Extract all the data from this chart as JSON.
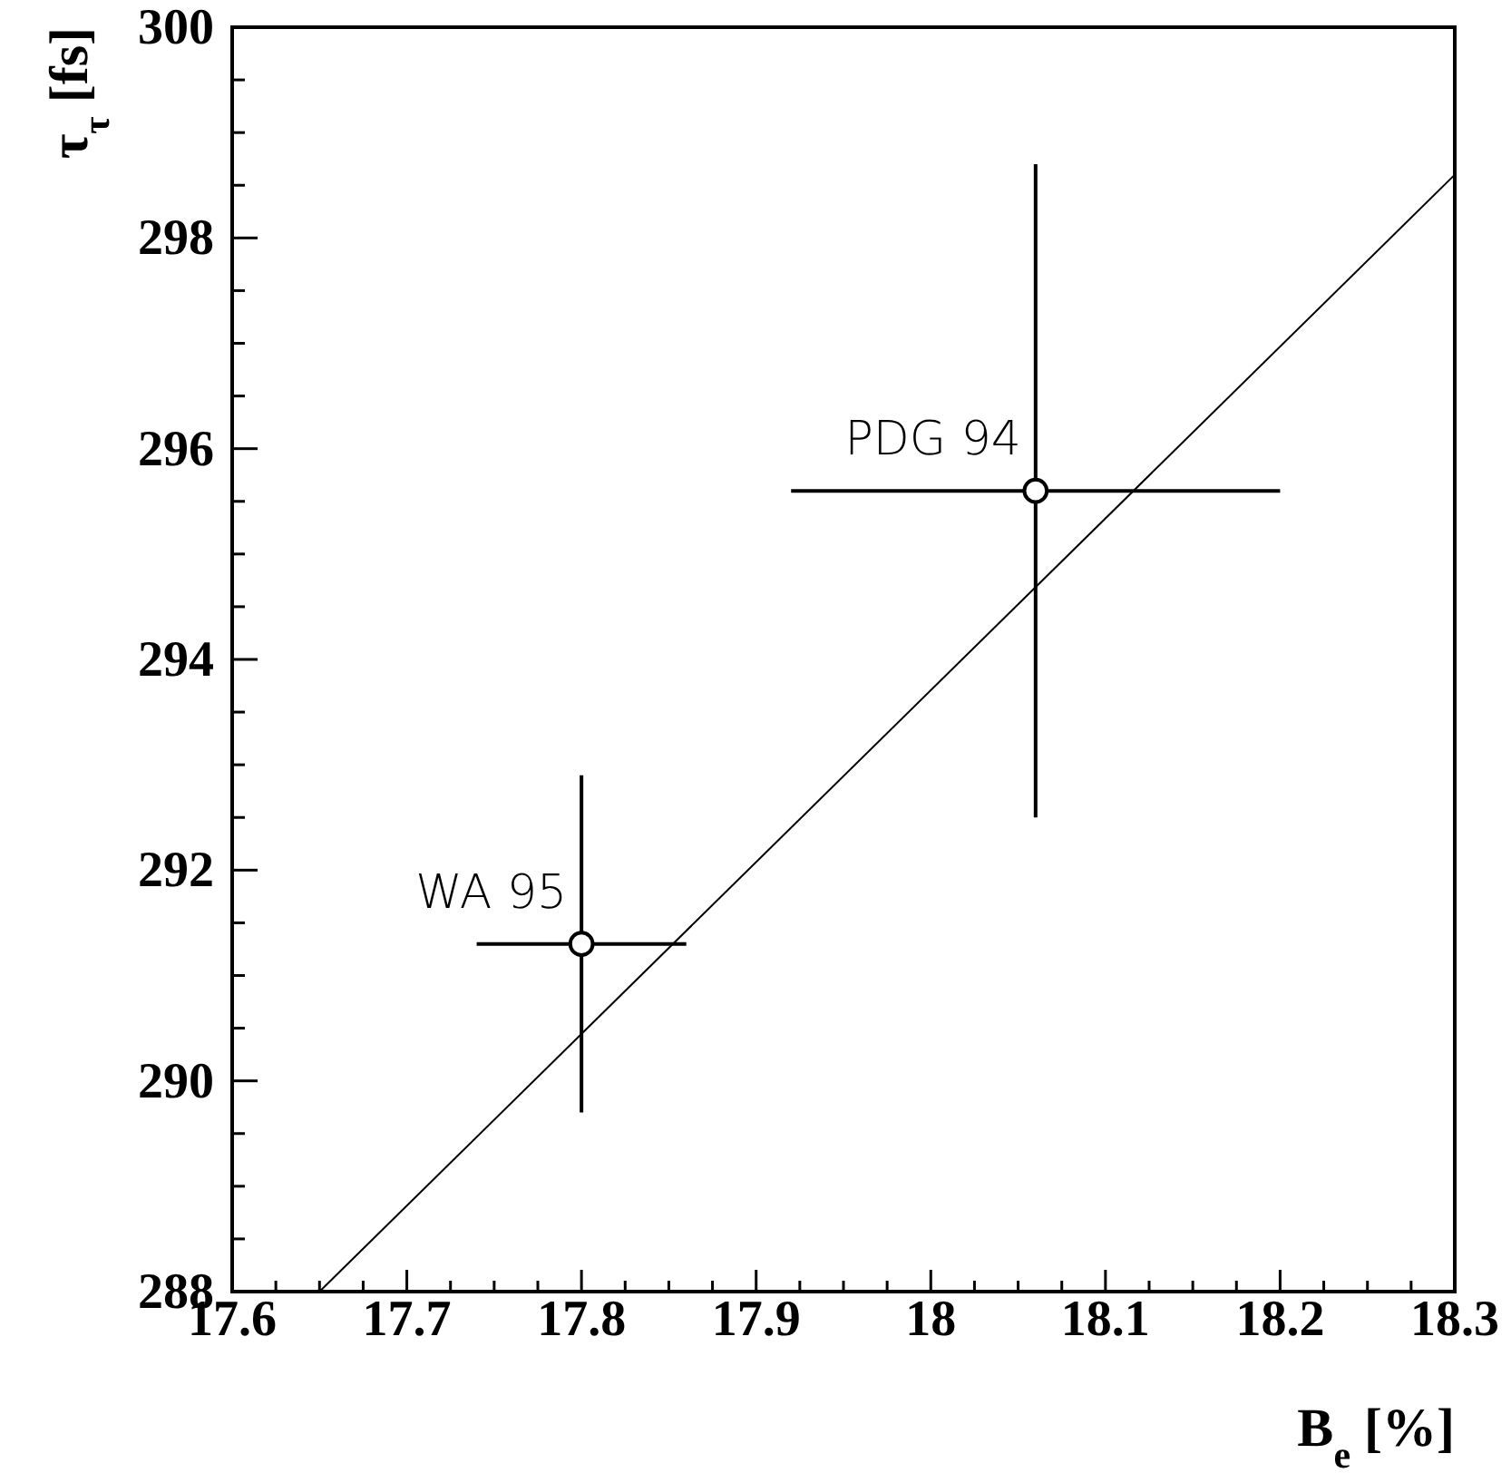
{
  "chart_data": {
    "type": "scatter",
    "xlabel": "B$_{e}$ [%]",
    "ylabel": "τ$_{τ}$ [fs]",
    "xlim": [
      17.6,
      18.3
    ],
    "xticks": [
      17.6,
      {
        "value": 17.625,
        "label": null
      },
      {
        "value": 17.65,
        "label": null
      },
      {
        "value": 17.675,
        "label": null
      },
      17.7,
      {
        "value": 17.725,
        "label": null
      },
      {
        "value": 17.75,
        "label": null
      },
      {
        "value": 17.775,
        "label": null
      },
      17.8,
      {
        "value": 17.825,
        "label": null
      },
      {
        "value": 17.85,
        "label": null
      },
      {
        "value": 17.875,
        "label": null
      },
      17.9,
      {
        "value": 17.925,
        "label": null
      },
      {
        "value": 17.95,
        "label": null
      },
      {
        "value": 17.975,
        "label": null
      },
      18,
      {
        "value": 18.025,
        "label": null
      },
      {
        "value": 18.05,
        "label": null
      },
      {
        "value": 18.075,
        "label": null
      },
      18.1,
      {
        "value": 18.125,
        "label": null
      },
      {
        "value": 18.15,
        "label": null
      },
      {
        "value": 18.175,
        "label": null
      },
      18.2,
      {
        "value": 18.225,
        "label": null
      },
      {
        "value": 18.25,
        "label": null
      },
      {
        "value": 18.275,
        "label": null
      },
      18.3
    ],
    "ylim": [
      288,
      300
    ],
    "yticks": [
      288,
      {
        "value": 288.5,
        "label": null
      },
      {
        "value": 289,
        "label": null
      },
      {
        "value": 289.5,
        "label": null
      },
      290,
      {
        "value": 290.5,
        "label": null
      },
      {
        "value": 291,
        "label": null
      },
      {
        "value": 291.5,
        "label": null
      },
      292,
      {
        "value": 292.5,
        "label": null
      },
      {
        "value": 293,
        "label": null
      },
      {
        "value": 293.5,
        "label": null
      },
      294,
      {
        "value": 294.5,
        "label": null
      },
      {
        "value": 295,
        "label": null
      },
      {
        "value": 295.5,
        "label": null
      },
      296,
      {
        "value": 296.5,
        "label": null
      },
      {
        "value": 297,
        "label": null
      },
      {
        "value": 297.5,
        "label": null
      },
      298,
      {
        "value": 298.5,
        "label": null
      },
      {
        "value": 299,
        "label": null
      },
      {
        "value": 299.5,
        "label": null
      },
      300
    ],
    "grid": false,
    "series": [
      {
        "marker": "circle",
        "color": "#000000",
        "x": [
          17.8,
          18.06
        ],
        "values": [
          291.3,
          295.6
        ],
        "errors": [
          1.6,
          3.1
        ],
        "xerrors": [
          0.06,
          0.14
        ]
      },
      {
        "type": "line",
        "color": "#000000",
        "x": [
          17.65,
          18.3
        ],
        "values": [
          288,
          298.6
        ]
      }
    ],
    "annotations": [
      {
        "text": "WA 95",
        "x": 17.8,
        "y": 291.3
      },
      {
        "text": "PDG 94",
        "x": 18.06,
        "y": 295.6
      }
    ]
  }
}
